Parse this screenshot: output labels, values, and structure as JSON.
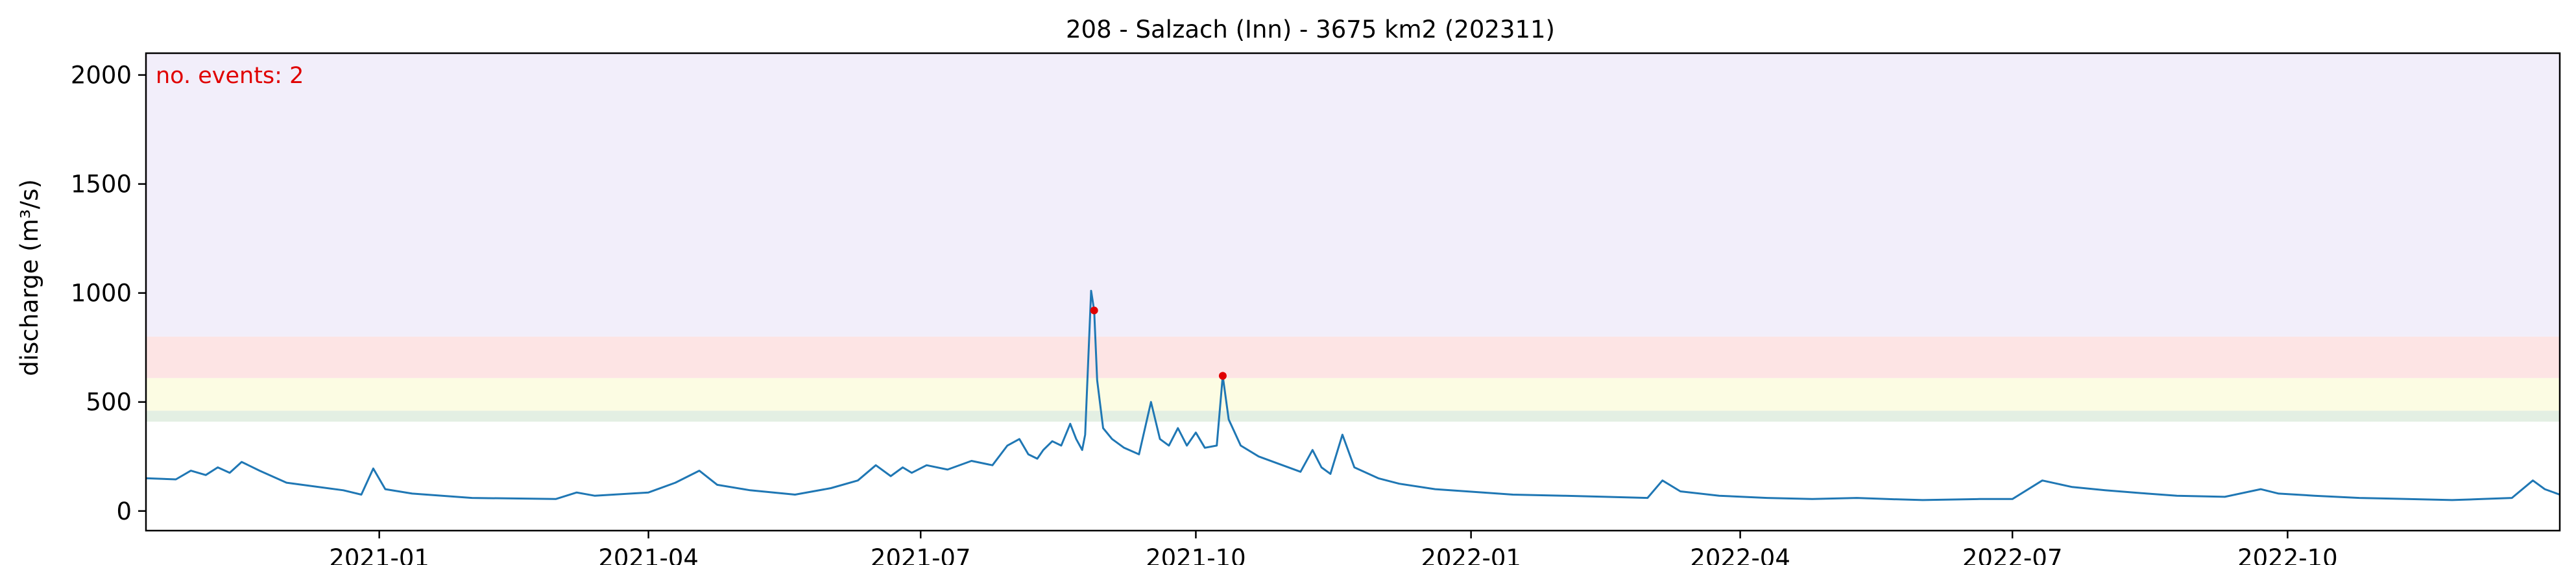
{
  "chart_data": {
    "type": "line",
    "title": "208 - Salzach (Inn) - 3675 km2 (202311)",
    "xlabel": "",
    "ylabel": "discharge (m³/s)",
    "xlim": [
      "2020-10-15",
      "2022-12-31"
    ],
    "ylim": [
      -90,
      2100
    ],
    "grid": false,
    "x_ticks": [
      "2021-01-01",
      "2021-04-01",
      "2021-07-01",
      "2021-10-01",
      "2022-01-01",
      "2022-04-01",
      "2022-07-01",
      "2022-10-01"
    ],
    "x_tick_labels": [
      "2021-01",
      "2021-04",
      "2021-07",
      "2021-10",
      "2022-01",
      "2022-04",
      "2022-07",
      "2022-10"
    ],
    "y_ticks": [
      0,
      500,
      1000,
      1500,
      2000
    ],
    "y_tick_labels": [
      "0",
      "500",
      "1000",
      "1500",
      "2000"
    ],
    "threshold_bands": [
      {
        "from": 410,
        "to": 460,
        "color": "#e3efe3"
      },
      {
        "from": 460,
        "to": 610,
        "color": "#fcfce3"
      },
      {
        "from": 610,
        "to": 800,
        "color": "#fde4e4"
      },
      {
        "from": 800,
        "to": 2100,
        "color": "#f2eefa"
      }
    ],
    "annotation": {
      "text": "no. events: 2",
      "color": "#e00000"
    },
    "series": [
      {
        "color": "#1f77b4",
        "points": [
          [
            "2020-10-15",
            150
          ],
          [
            "2020-10-25",
            145
          ],
          [
            "2020-10-30",
            185
          ],
          [
            "2020-11-04",
            165
          ],
          [
            "2020-11-08",
            200
          ],
          [
            "2020-11-12",
            175
          ],
          [
            "2020-11-16",
            225
          ],
          [
            "2020-11-22",
            185
          ],
          [
            "2020-12-01",
            130
          ],
          [
            "2020-12-20",
            95
          ],
          [
            "2020-12-26",
            75
          ],
          [
            "2020-12-30",
            195
          ],
          [
            "2021-01-03",
            100
          ],
          [
            "2021-01-12",
            80
          ],
          [
            "2021-02-01",
            60
          ],
          [
            "2021-03-01",
            55
          ],
          [
            "2021-03-08",
            85
          ],
          [
            "2021-03-14",
            70
          ],
          [
            "2021-04-01",
            85
          ],
          [
            "2021-04-10",
            130
          ],
          [
            "2021-04-18",
            185
          ],
          [
            "2021-04-24",
            120
          ],
          [
            "2021-05-05",
            95
          ],
          [
            "2021-05-20",
            75
          ],
          [
            "2021-06-01",
            105
          ],
          [
            "2021-06-10",
            140
          ],
          [
            "2021-06-16",
            210
          ],
          [
            "2021-06-21",
            160
          ],
          [
            "2021-06-25",
            200
          ],
          [
            "2021-06-28",
            175
          ],
          [
            "2021-07-03",
            210
          ],
          [
            "2021-07-10",
            190
          ],
          [
            "2021-07-18",
            230
          ],
          [
            "2021-07-25",
            210
          ],
          [
            "2021-07-30",
            300
          ],
          [
            "2021-08-03",
            330
          ],
          [
            "2021-08-06",
            260
          ],
          [
            "2021-08-09",
            240
          ],
          [
            "2021-08-11",
            280
          ],
          [
            "2021-08-14",
            320
          ],
          [
            "2021-08-17",
            300
          ],
          [
            "2021-08-20",
            400
          ],
          [
            "2021-08-22",
            330
          ],
          [
            "2021-08-24",
            280
          ],
          [
            "2021-08-25",
            350
          ],
          [
            "2021-08-27",
            1010
          ],
          [
            "2021-08-28",
            920
          ],
          [
            "2021-08-29",
            600
          ],
          [
            "2021-08-31",
            380
          ],
          [
            "2021-09-03",
            330
          ],
          [
            "2021-09-07",
            290
          ],
          [
            "2021-09-12",
            260
          ],
          [
            "2021-09-16",
            500
          ],
          [
            "2021-09-19",
            330
          ],
          [
            "2021-09-22",
            300
          ],
          [
            "2021-09-25",
            380
          ],
          [
            "2021-09-28",
            300
          ],
          [
            "2021-10-01",
            360
          ],
          [
            "2021-10-04",
            290
          ],
          [
            "2021-10-08",
            300
          ],
          [
            "2021-10-10",
            620
          ],
          [
            "2021-10-12",
            420
          ],
          [
            "2021-10-16",
            300
          ],
          [
            "2021-10-22",
            250
          ],
          [
            "2021-10-28",
            220
          ],
          [
            "2021-11-05",
            180
          ],
          [
            "2021-11-09",
            280
          ],
          [
            "2021-11-12",
            200
          ],
          [
            "2021-11-15",
            170
          ],
          [
            "2021-11-19",
            350
          ],
          [
            "2021-11-23",
            200
          ],
          [
            "2021-12-01",
            150
          ],
          [
            "2021-12-08",
            125
          ],
          [
            "2021-12-20",
            100
          ],
          [
            "2022-01-05",
            85
          ],
          [
            "2022-01-15",
            75
          ],
          [
            "2022-02-01",
            70
          ],
          [
            "2022-02-15",
            65
          ],
          [
            "2022-03-01",
            60
          ],
          [
            "2022-03-06",
            140
          ],
          [
            "2022-03-12",
            90
          ],
          [
            "2022-03-25",
            70
          ],
          [
            "2022-04-10",
            60
          ],
          [
            "2022-04-25",
            55
          ],
          [
            "2022-05-10",
            60
          ],
          [
            "2022-05-20",
            55
          ],
          [
            "2022-06-01",
            50
          ],
          [
            "2022-06-20",
            55
          ],
          [
            "2022-07-01",
            55
          ],
          [
            "2022-07-11",
            140
          ],
          [
            "2022-07-21",
            110
          ],
          [
            "2022-08-01",
            95
          ],
          [
            "2022-08-15",
            80
          ],
          [
            "2022-08-25",
            70
          ],
          [
            "2022-09-10",
            65
          ],
          [
            "2022-09-22",
            100
          ],
          [
            "2022-09-28",
            80
          ],
          [
            "2022-10-10",
            70
          ],
          [
            "2022-10-25",
            60
          ],
          [
            "2022-11-10",
            55
          ],
          [
            "2022-11-25",
            50
          ],
          [
            "2022-12-05",
            55
          ],
          [
            "2022-12-15",
            60
          ],
          [
            "2022-12-22",
            140
          ],
          [
            "2022-12-26",
            100
          ],
          [
            "2022-12-31",
            75
          ]
        ]
      }
    ],
    "events": [
      {
        "x": "2021-08-28",
        "y": 920,
        "color": "#e00000"
      },
      {
        "x": "2021-10-10",
        "y": 620,
        "color": "#e00000"
      }
    ]
  }
}
